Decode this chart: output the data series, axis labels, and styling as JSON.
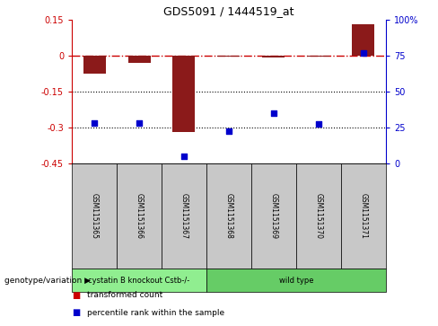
{
  "title": "GDS5091 / 1444519_at",
  "samples": [
    "GSM1151365",
    "GSM1151366",
    "GSM1151367",
    "GSM1151368",
    "GSM1151369",
    "GSM1151370",
    "GSM1151371"
  ],
  "transformed_count": [
    -0.075,
    -0.03,
    -0.32,
    -0.005,
    -0.01,
    -0.005,
    0.13
  ],
  "percentile_rank": [
    28,
    28,
    5,
    22,
    35,
    27,
    77
  ],
  "ylim_left": [
    -0.45,
    0.15
  ],
  "ylim_right": [
    0,
    100
  ],
  "yticks_left": [
    0.15,
    0.0,
    -0.15,
    -0.3,
    -0.45
  ],
  "yticks_right": [
    100,
    75,
    50,
    25,
    0
  ],
  "hlines": [
    -0.15,
    -0.3
  ],
  "zero_line": 0.0,
  "bar_color": "#8B1A1A",
  "dot_color": "#0000CC",
  "zero_line_color": "#CC0000",
  "hline_color": "#000000",
  "groups": [
    {
      "label": "cystatin B knockout Cstb-/-",
      "start": 0,
      "end": 3,
      "color": "#90EE90"
    },
    {
      "label": "wild type",
      "start": 3,
      "end": 7,
      "color": "#66CC66"
    }
  ],
  "legend_items": [
    {
      "label": "transformed count",
      "color": "#CC0000"
    },
    {
      "label": "percentile rank within the sample",
      "color": "#0000CC"
    }
  ],
  "bar_width": 0.5,
  "sample_box_color": "#C8C8C8",
  "group_label_text": "genotype/variation"
}
